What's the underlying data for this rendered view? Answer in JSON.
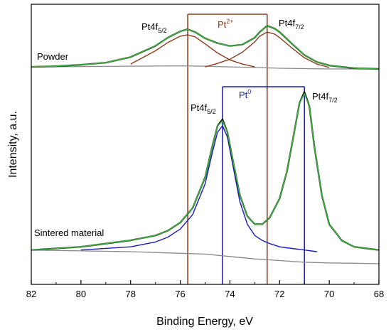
{
  "chart_data": {
    "type": "line",
    "xlabel": "Binding Energy, eV",
    "ylabel": "Intensity, a.u.",
    "xlim": [
      82,
      68
    ],
    "x_reversed": true,
    "x_ticks": [
      "82",
      "80",
      "78",
      "76",
      "74",
      "72",
      "70",
      "68"
    ],
    "y_ticks_shown": false,
    "grid": false,
    "annotations": {
      "powder_label": "Powder",
      "sintered_label": "Sintered material",
      "pt2_label": "Pt",
      "pt2_sup": "2+",
      "pt0_label": "Pt",
      "pt0_sup": "0",
      "powder_f52_base": "Pt4f",
      "powder_f52_sub": "5/2",
      "powder_f72_base": "Pt4f",
      "powder_f72_sub": "7/2",
      "sint_f52_base": "Pt4f",
      "sint_f52_sub": "5/2",
      "sint_f72_base": "Pt4f",
      "sint_f72_sub": "7/2"
    },
    "reference_lines": [
      {
        "name": "Pt2+ 4f5/2",
        "x": 75.7,
        "color": "#8b3a1a"
      },
      {
        "name": "Pt2+ 4f7/2",
        "x": 72.5,
        "color": "#8b3a1a"
      },
      {
        "name": "Pt0 4f5/2",
        "x": 74.3,
        "color": "#1a1ab8"
      },
      {
        "name": "Pt0 4f7/2",
        "x": 71.0,
        "color": "#1a1ab8"
      }
    ],
    "series": [
      {
        "group": "Powder",
        "role": "measured",
        "color": "#000000",
        "x": [
          82,
          81,
          80,
          79,
          78,
          77,
          76.5,
          76,
          75.7,
          75.4,
          75,
          74.5,
          74,
          73.5,
          73,
          72.8,
          72.5,
          72.2,
          72,
          71.5,
          71,
          70.5,
          70,
          69,
          68
        ],
        "y": [
          0.03,
          0.04,
          0.06,
          0.09,
          0.17,
          0.33,
          0.45,
          0.54,
          0.57,
          0.53,
          0.44,
          0.37,
          0.33,
          0.35,
          0.45,
          0.53,
          0.62,
          0.58,
          0.53,
          0.36,
          0.2,
          0.1,
          0.05,
          0.01,
          0.0
        ]
      },
      {
        "group": "Powder",
        "role": "fit envelope",
        "color": "#3cb43c",
        "x": [
          82,
          81,
          80,
          79,
          78,
          77,
          76.5,
          76,
          75.7,
          75.4,
          75,
          74.5,
          74,
          73.5,
          73,
          72.8,
          72.5,
          72.2,
          72,
          71.5,
          71,
          70.5,
          70,
          69,
          68
        ],
        "y": [
          0.03,
          0.04,
          0.06,
          0.09,
          0.17,
          0.33,
          0.45,
          0.54,
          0.57,
          0.53,
          0.44,
          0.37,
          0.33,
          0.35,
          0.45,
          0.53,
          0.62,
          0.58,
          0.53,
          0.36,
          0.2,
          0.1,
          0.05,
          0.01,
          0.0
        ]
      },
      {
        "group": "Powder",
        "role": "component Pt2+ 4f5/2",
        "color": "#8b3a1a",
        "x": [
          78,
          77,
          76.5,
          76,
          75.7,
          75.4,
          75,
          74.5,
          74,
          73.5,
          73
        ],
        "y": [
          0.07,
          0.26,
          0.38,
          0.47,
          0.49,
          0.46,
          0.36,
          0.23,
          0.13,
          0.07,
          0.03
        ]
      },
      {
        "group": "Powder",
        "role": "component Pt2+ 4f7/2",
        "color": "#8b3a1a",
        "x": [
          75,
          74.5,
          74,
          73.5,
          73,
          72.8,
          72.5,
          72.2,
          72,
          71.5,
          71,
          70.5,
          70
        ],
        "y": [
          0.03,
          0.08,
          0.14,
          0.24,
          0.39,
          0.47,
          0.53,
          0.5,
          0.45,
          0.3,
          0.16,
          0.07,
          0.02
        ]
      },
      {
        "group": "Powder",
        "role": "background",
        "color": "#888888",
        "x": [
          82,
          80,
          78,
          76,
          75,
          74,
          73,
          72,
          71,
          70,
          68
        ],
        "y": [
          0.03,
          0.035,
          0.04,
          0.045,
          0.04,
          0.03,
          0.02,
          0.01,
          0.005,
          0.0,
          0.0
        ]
      },
      {
        "group": "Sintered material",
        "role": "measured",
        "color": "#000000",
        "x": [
          82,
          81,
          80,
          79,
          78,
          77,
          76.5,
          76,
          75.5,
          75,
          74.7,
          74.5,
          74.3,
          74.1,
          73.9,
          73.6,
          73.3,
          73,
          72.7,
          72.4,
          72,
          71.7,
          71.4,
          71.2,
          71.0,
          70.8,
          70.6,
          70.3,
          70,
          69.5,
          69,
          68.5,
          68
        ],
        "y": [
          0.01,
          0.02,
          0.03,
          0.05,
          0.07,
          0.1,
          0.13,
          0.18,
          0.27,
          0.46,
          0.66,
          0.78,
          0.82,
          0.74,
          0.58,
          0.35,
          0.22,
          0.17,
          0.17,
          0.21,
          0.33,
          0.5,
          0.75,
          0.92,
          0.99,
          0.9,
          0.65,
          0.35,
          0.17,
          0.07,
          0.03,
          0.02,
          0.01
        ]
      },
      {
        "group": "Sintered material",
        "role": "fit envelope",
        "color": "#3cb43c",
        "x": [
          82,
          81,
          80,
          79,
          78,
          77,
          76.5,
          76,
          75.5,
          75,
          74.7,
          74.5,
          74.3,
          74.1,
          73.9,
          73.6,
          73.3,
          73,
          72.7,
          72.4,
          72,
          71.7,
          71.4,
          71.2,
          71.0,
          70.8,
          70.6,
          70.3,
          70,
          69.5,
          69,
          68.5,
          68
        ],
        "y": [
          0.01,
          0.02,
          0.03,
          0.05,
          0.07,
          0.1,
          0.13,
          0.18,
          0.27,
          0.46,
          0.66,
          0.78,
          0.81,
          0.74,
          0.58,
          0.35,
          0.22,
          0.17,
          0.17,
          0.21,
          0.33,
          0.5,
          0.75,
          0.92,
          0.98,
          0.9,
          0.65,
          0.35,
          0.17,
          0.07,
          0.03,
          0.02,
          0.01
        ]
      },
      {
        "group": "Sintered material",
        "role": "component Pt0 4f5/2",
        "color": "#1a1ab8",
        "x": [
          80,
          78,
          77,
          76.5,
          76,
          75.5,
          75,
          74.7,
          74.5,
          74.3,
          74.1,
          73.9,
          73.6,
          73.3,
          73,
          72.7,
          72.4,
          72,
          71.5,
          71,
          70.5
        ],
        "y": [
          0.01,
          0.03,
          0.06,
          0.09,
          0.14,
          0.23,
          0.42,
          0.62,
          0.74,
          0.78,
          0.71,
          0.55,
          0.31,
          0.17,
          0.1,
          0.07,
          0.05,
          0.03,
          0.02,
          0.01,
          0.0
        ]
      },
      {
        "group": "Sintered material",
        "role": "background",
        "color": "#888888",
        "x": [
          82,
          80,
          78,
          76,
          75,
          74,
          73,
          72,
          71,
          70,
          69,
          68
        ],
        "y": [
          0.01,
          0.005,
          0.0,
          -0.01,
          -0.015,
          -0.03,
          -0.045,
          -0.055,
          -0.065,
          -0.07,
          -0.072,
          -0.075
        ]
      }
    ]
  }
}
